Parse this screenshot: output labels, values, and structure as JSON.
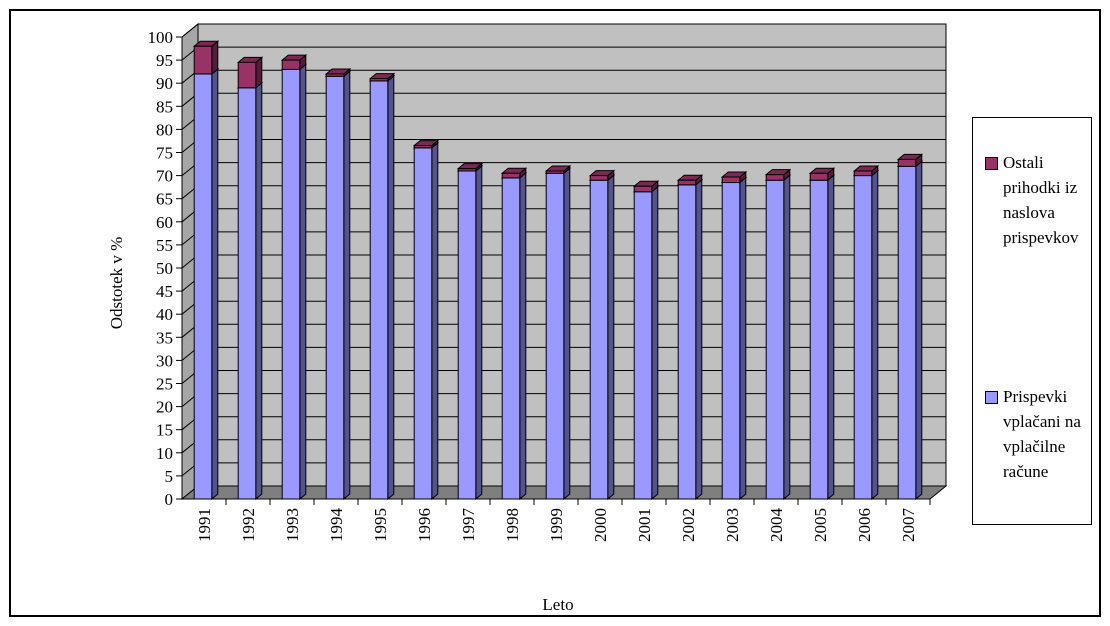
{
  "chart_data": {
    "type": "bar",
    "stacked": true,
    "style": "3d",
    "title": "",
    "xlabel": "Leto",
    "ylabel": "Odstotek v %",
    "ylim": [
      0,
      100
    ],
    "ytick_step": 5,
    "grid": true,
    "legend_position": "right",
    "categories": [
      "1991",
      "1992",
      "1993",
      "1994",
      "1995",
      "1996",
      "1997",
      "1998",
      "1999",
      "2000",
      "2001",
      "2002",
      "2003",
      "2004",
      "2005",
      "2006",
      "2007"
    ],
    "series": [
      {
        "name": "Prispevki vplačani na vplačilne račune",
        "color": "#9999ff",
        "values": [
          92,
          89,
          93,
          91.5,
          90.5,
          76,
          71,
          69.5,
          70.5,
          69,
          66.5,
          68,
          68.5,
          69,
          69,
          70,
          72
        ]
      },
      {
        "name": "Ostali prihodki iz naslova prispevkov",
        "color": "#993366",
        "values": [
          6,
          5.5,
          2,
          0.5,
          0.5,
          0.5,
          0.5,
          1,
          0.5,
          1,
          1.2,
          1,
          1.2,
          1.2,
          1.5,
          1,
          1.5
        ]
      }
    ]
  }
}
